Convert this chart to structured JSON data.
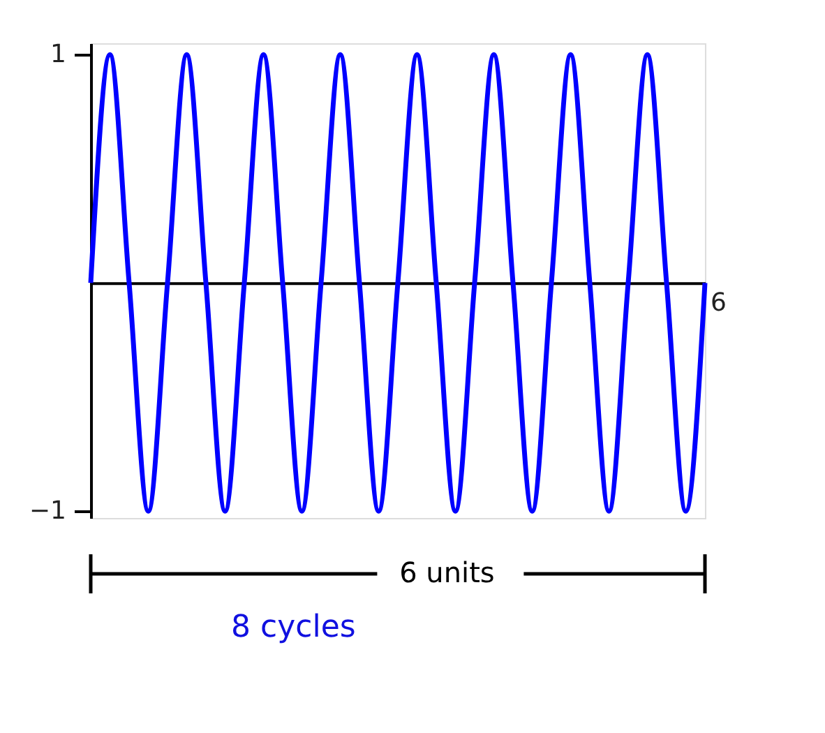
{
  "chart_data": {
    "type": "line",
    "categories": [
      null,
      null,
      null,
      null,
      null,
      null,
      null,
      null,
      null,
      null,
      null,
      null,
      null,
      null,
      null,
      null,
      null,
      null,
      null,
      null,
      null,
      null,
      null,
      null,
      null,
      null,
      null,
      null,
      null,
      null,
      null,
      null,
      null
    ],
    "series": [
      {
        "color": "#0000ff",
        "values": [
          0,
          1,
          0,
          -1,
          0,
          1,
          0,
          -1,
          0,
          1,
          0,
          -1,
          0,
          1,
          0,
          -1,
          0,
          1,
          0,
          -1,
          0,
          1,
          0,
          -1,
          0,
          1,
          0,
          -1,
          0,
          1,
          0,
          -1,
          0
        ]
      }
    ],
    "ylim": [
      -1.03,
      1.05
    ],
    "yticks": [
      -1,
      1
    ],
    "grid": false,
    "marker": "none",
    "line_style": "solid",
    "annotations": [
      "6",
      "6 units",
      "8 cycles"
    ]
  }
}
